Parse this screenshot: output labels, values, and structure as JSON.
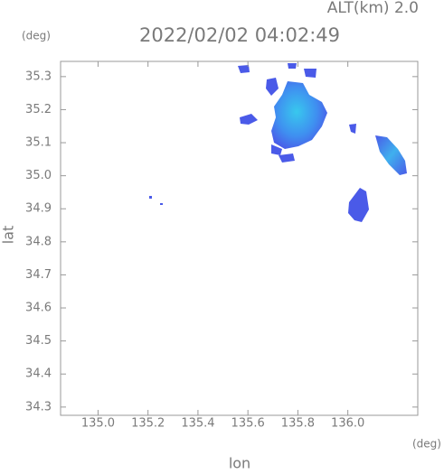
{
  "chart_data": {
    "type": "map",
    "title": "2022/02/02 04:02:49",
    "subtitle": "ALT(km) 2.0",
    "x_label": "lon",
    "y_label": "lat",
    "x_unit": "(deg)",
    "y_unit": "(deg)",
    "xlim": [
      134.85,
      136.28
    ],
    "ylim": [
      34.275,
      35.346
    ],
    "xticks": [
      {
        "value": 135,
        "label": "135.0"
      },
      135.2,
      135.4,
      135.6,
      135.8,
      {
        "value": 136,
        "label": "136.0"
      }
    ],
    "yticks": [
      34.3,
      34.4,
      34.5,
      34.6,
      34.7,
      34.8,
      34.9,
      {
        "value": 35,
        "label": "35.0"
      },
      35.1,
      35.2,
      35.3
    ]
  }
}
